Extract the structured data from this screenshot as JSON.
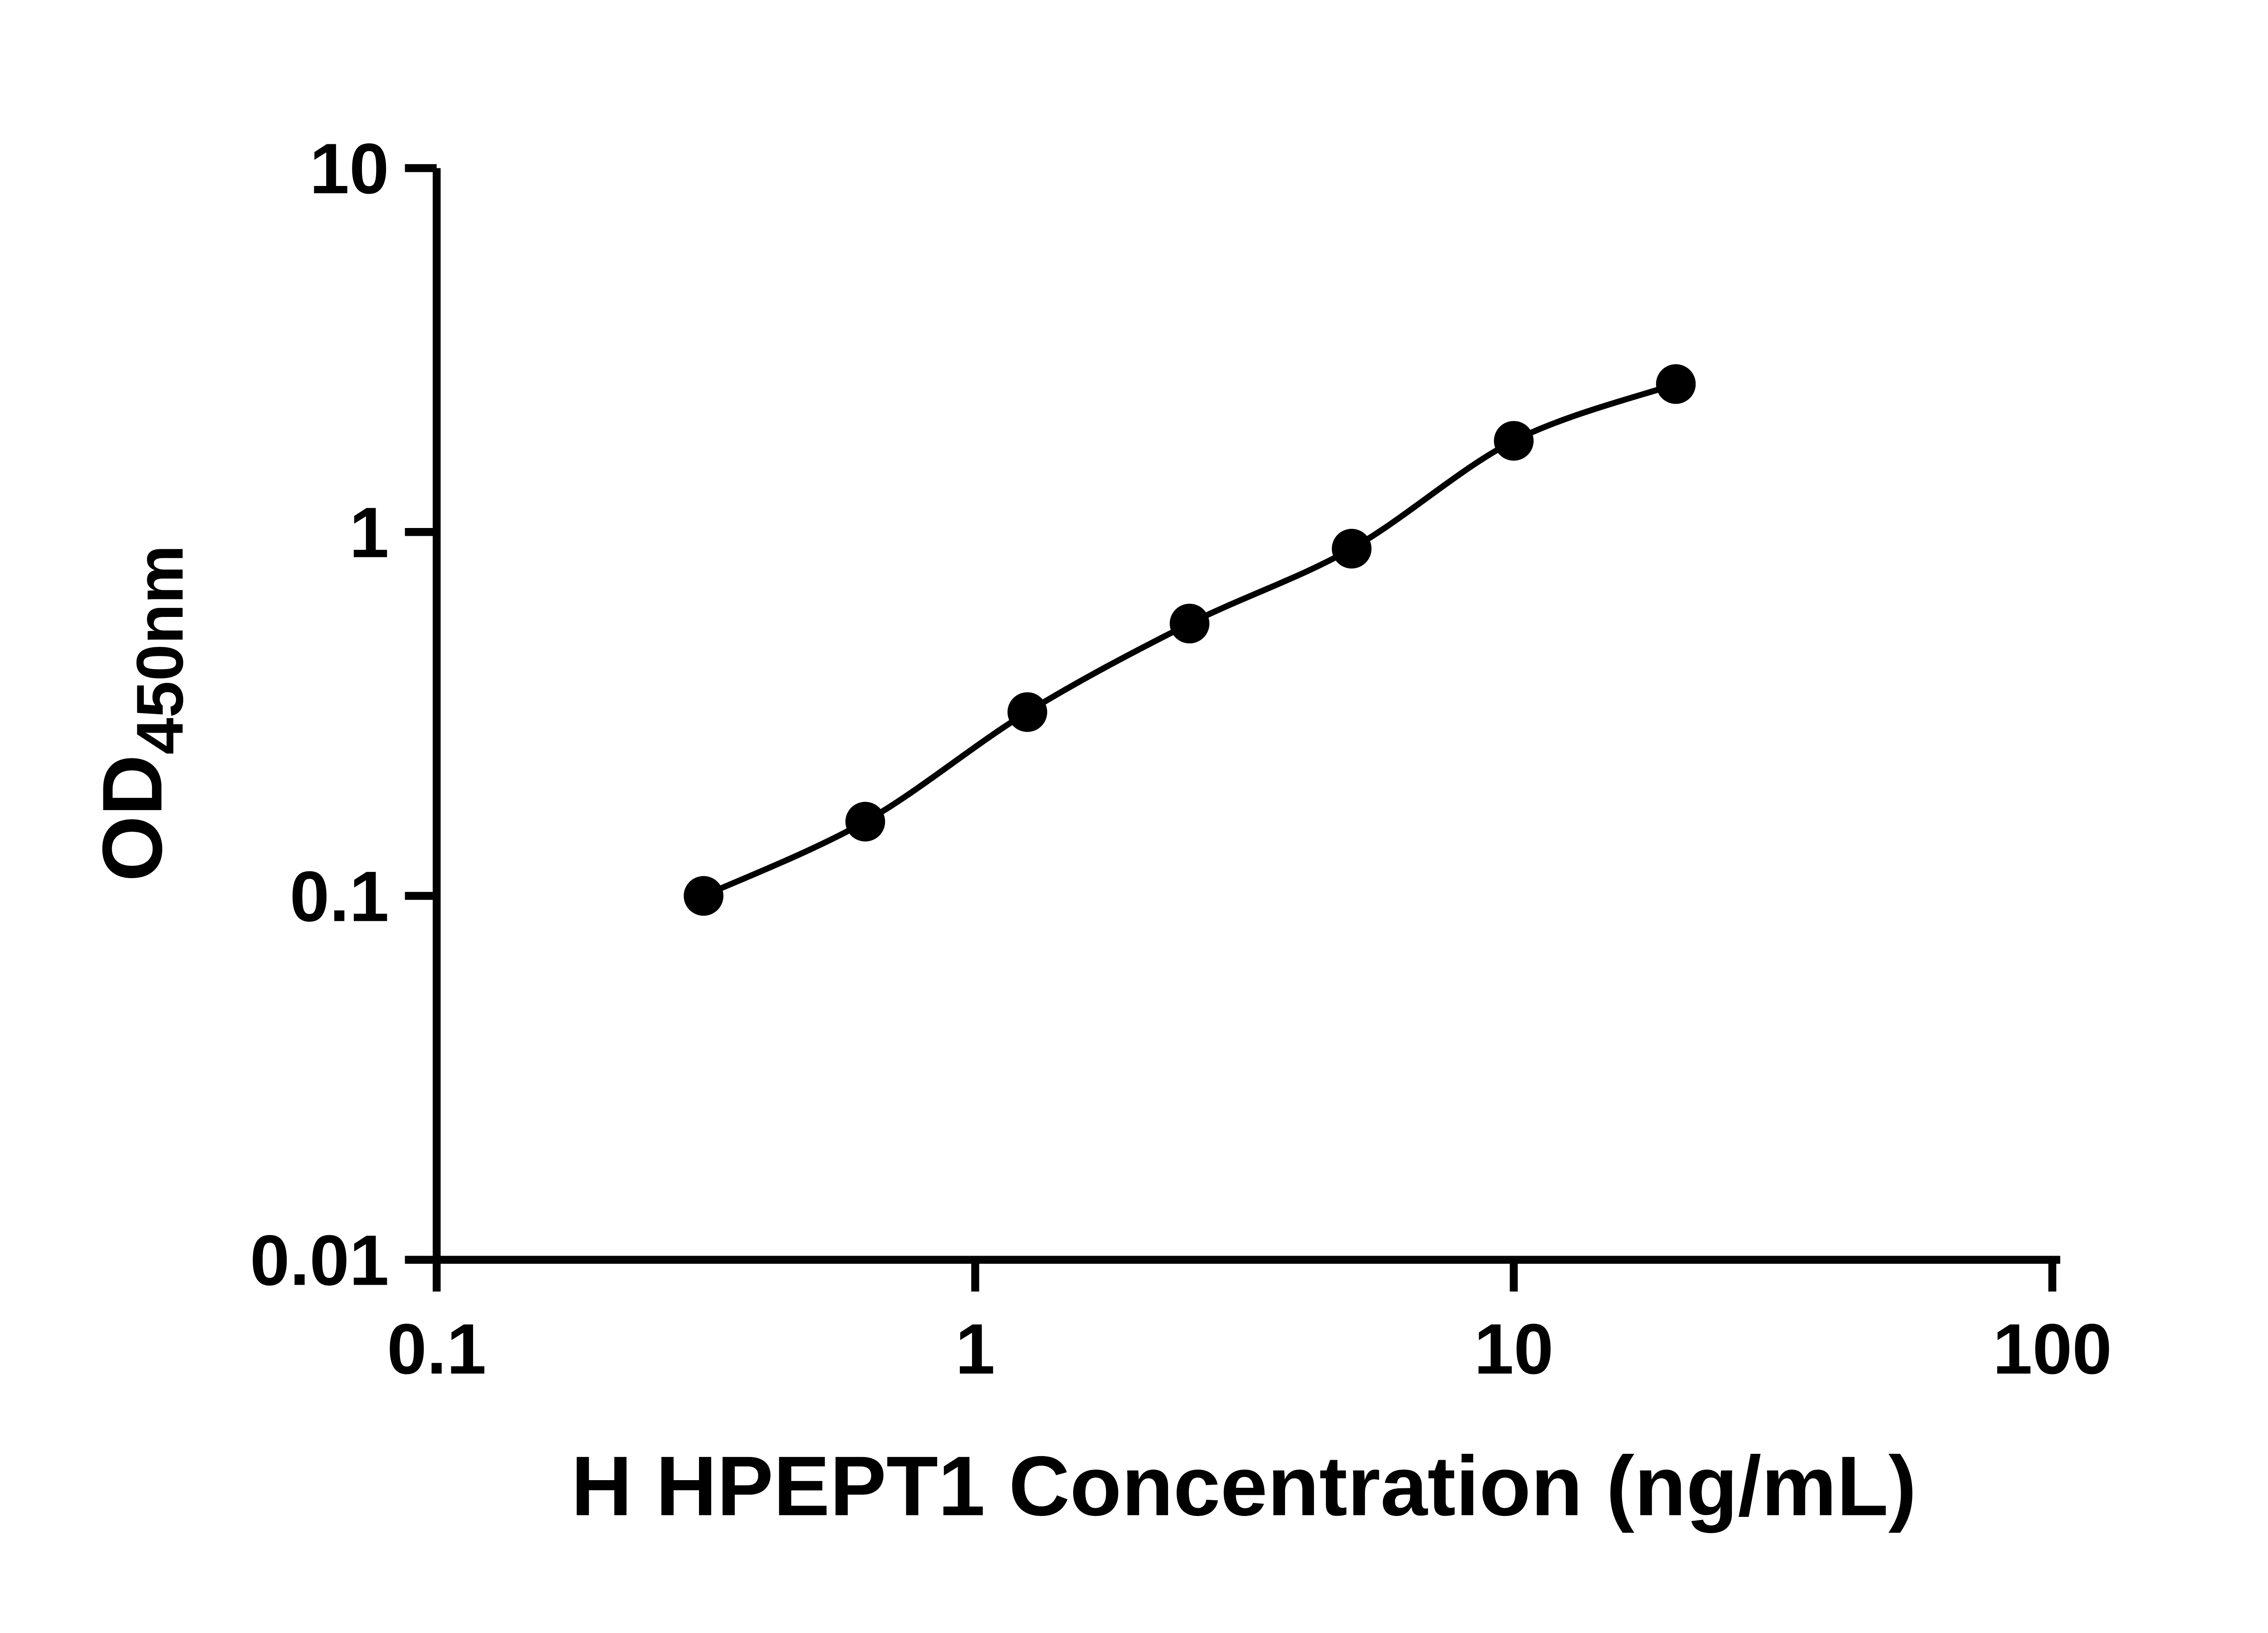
{
  "figure": {
    "background": "#ffffff"
  },
  "chart_data": {
    "type": "scatter",
    "title": "",
    "xlabel": "H HPEPT1 Concentration (ng/mL)",
    "ylabel": "OD450nm",
    "ylabel_main": "OD",
    "ylabel_sub": "450nm",
    "x_scale": "log10",
    "y_scale": "log10",
    "xlim": [
      0.1,
      100
    ],
    "ylim": [
      0.01,
      10
    ],
    "x_ticks": [
      0.1,
      1,
      10,
      100
    ],
    "x_tick_labels": [
      "0.1",
      "1",
      "10",
      "100"
    ],
    "y_ticks": [
      0.01,
      0.1,
      1,
      10
    ],
    "y_tick_labels": [
      "0.01",
      "0.1",
      "1",
      "10"
    ],
    "grid": false,
    "legend": false,
    "axis_color": "#000000",
    "series": [
      {
        "x": [
          0.313,
          0.625,
          1.25,
          2.5,
          5,
          10,
          20
        ],
        "y": [
          0.1,
          0.16,
          0.32,
          0.56,
          0.9,
          1.78,
          2.55
        ],
        "marker": "circle",
        "marker_color": "#000000",
        "line_color": "#000000",
        "line_style": "smooth"
      }
    ]
  }
}
